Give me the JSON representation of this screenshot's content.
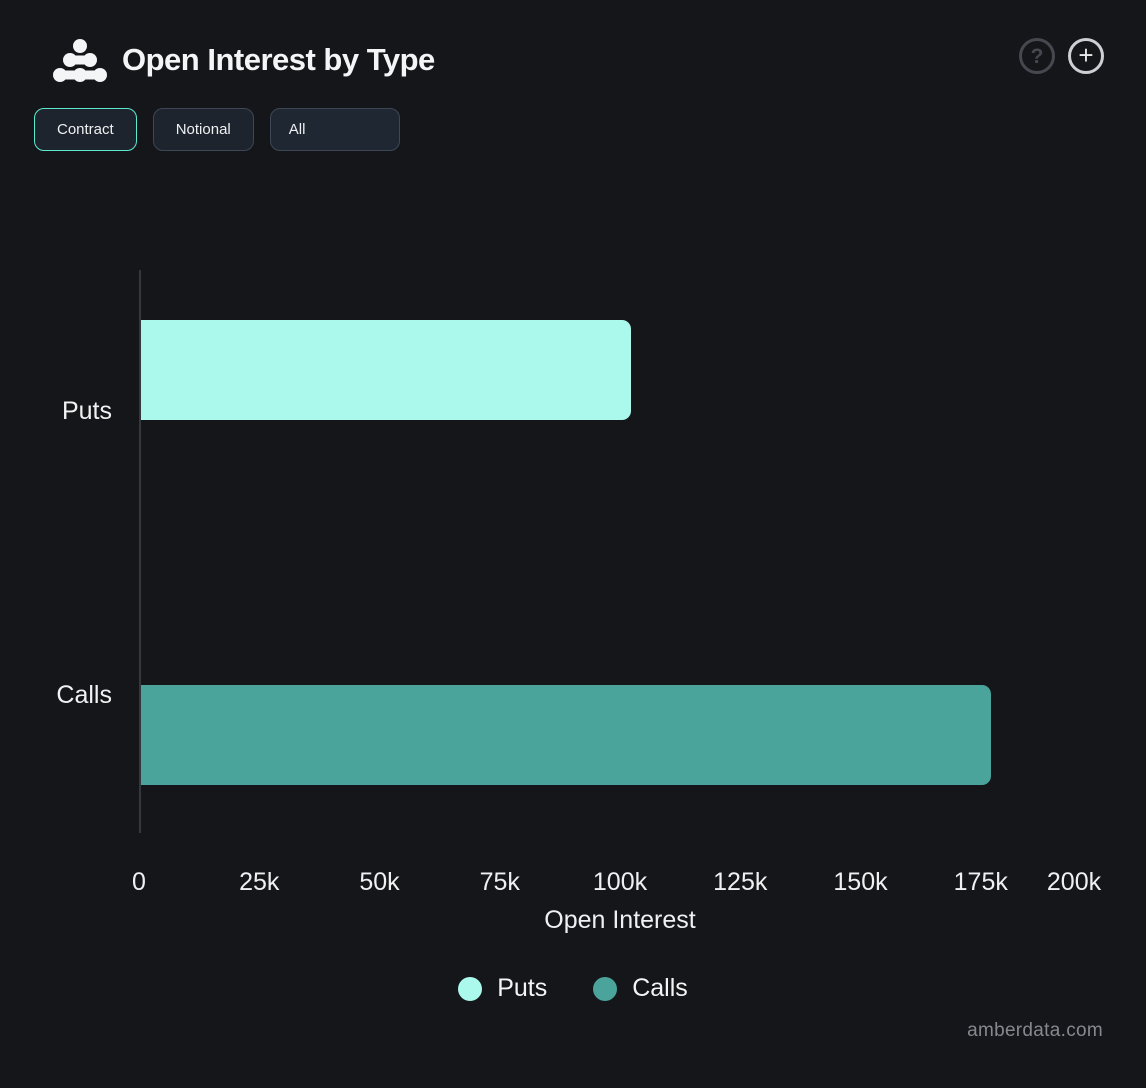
{
  "header": {
    "title": "Open Interest by Type",
    "help_glyph": "?",
    "add_glyph": "+"
  },
  "toolbar": {
    "buttons": [
      {
        "label": "Contract",
        "selected": true
      },
      {
        "label": "Notional",
        "selected": false
      },
      {
        "label": "All",
        "selected": false
      }
    ]
  },
  "chart_data": {
    "type": "bar",
    "orientation": "horizontal",
    "title": "Open Interest by Type",
    "categories": [
      "Puts",
      "Calls"
    ],
    "values": [
      102000,
      177000
    ],
    "colors": [
      "#abf9ec",
      "#4ba49c"
    ],
    "xlabel": "Open Interest",
    "ylabel": "",
    "xlim": [
      0,
      200000
    ],
    "x_ticks": [
      "0",
      "25k",
      "50k",
      "75k",
      "100k",
      "125k",
      "150k",
      "175k",
      "200k"
    ],
    "grid": false,
    "legend": {
      "position": "bottom-center",
      "entries": [
        {
          "label": "Puts",
          "color": "#abf9ec"
        },
        {
          "label": "Calls",
          "color": "#4ba49c"
        }
      ]
    }
  },
  "footer": {
    "watermark": "amberdata.com"
  }
}
